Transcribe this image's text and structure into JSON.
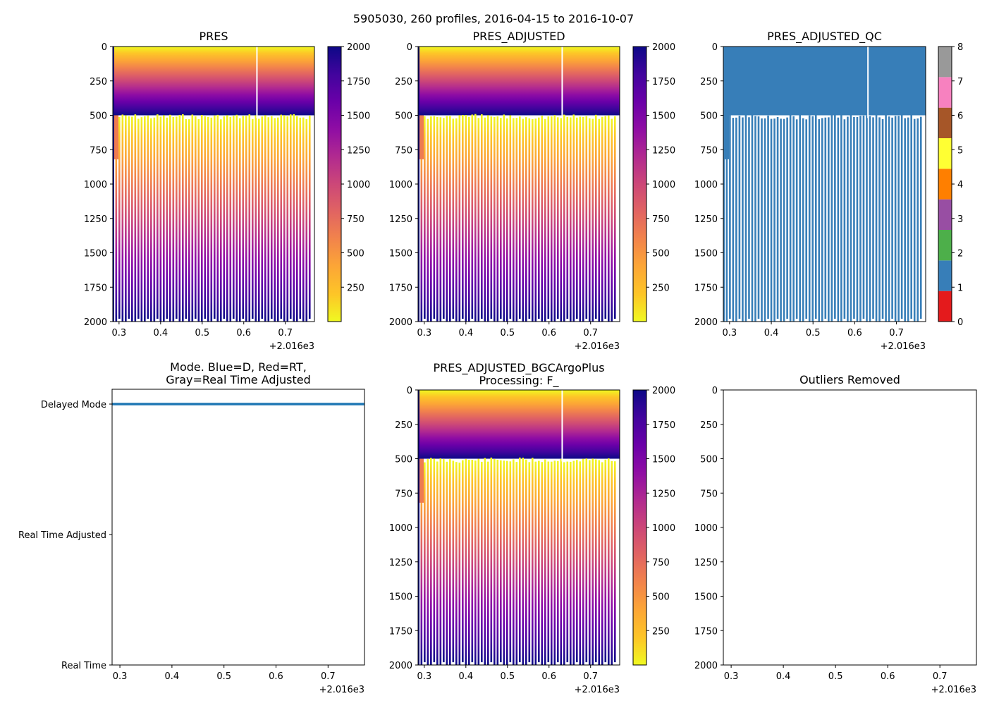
{
  "suptitle": "5905030, 260 profiles, 2016-04-15 to 2016-10-07",
  "chart_data": [
    {
      "id": "pres",
      "type": "heatmap",
      "title": "PRES",
      "xlim": [
        0.285,
        0.77
      ],
      "xticks": [
        0.3,
        0.4,
        0.5,
        0.6,
        0.7
      ],
      "x_offset_label": "+2.016e3",
      "ylim": [
        2000,
        0
      ],
      "yticks": [
        0,
        250,
        500,
        750,
        1000,
        1250,
        1500,
        1750,
        2000
      ],
      "colormap": "plasma_r",
      "clim": [
        0,
        2000
      ],
      "colorbar_ticks": [
        250,
        500,
        750,
        1000,
        1250,
        1500,
        1750,
        2000
      ],
      "gap_x": 0.63,
      "profile_count": 260,
      "value_range": [
        0,
        2000
      ],
      "surface_layer_depth": 500
    },
    {
      "id": "pres_adjusted",
      "type": "heatmap",
      "title": "PRES_ADJUSTED",
      "xlim": [
        0.285,
        0.77
      ],
      "xticks": [
        0.3,
        0.4,
        0.5,
        0.6,
        0.7
      ],
      "x_offset_label": "+2.016e3",
      "ylim": [
        2000,
        0
      ],
      "yticks": [
        0,
        250,
        500,
        750,
        1000,
        1250,
        1500,
        1750,
        2000
      ],
      "colormap": "plasma_r",
      "clim": [
        0,
        2000
      ],
      "colorbar_ticks": [
        250,
        500,
        750,
        1000,
        1250,
        1500,
        1750,
        2000
      ],
      "gap_x": 0.63,
      "profile_count": 260,
      "value_range": [
        0,
        2000
      ],
      "surface_layer_depth": 500
    },
    {
      "id": "pres_adjusted_qc",
      "type": "heatmap",
      "title": "PRES_ADJUSTED_QC",
      "xlim": [
        0.285,
        0.77
      ],
      "xticks": [
        0.3,
        0.4,
        0.5,
        0.6,
        0.7
      ],
      "x_offset_label": "+2.016e3",
      "ylim": [
        2000,
        0
      ],
      "yticks": [
        0,
        250,
        500,
        750,
        1000,
        1250,
        1500,
        1750,
        2000
      ],
      "qc_value": 1,
      "gap_x": 0.63,
      "colorbar_categories": [
        {
          "value": 0,
          "color": "#e41a1c"
        },
        {
          "value": 1,
          "color": "#377eb8"
        },
        {
          "value": 2,
          "color": "#4daf4a"
        },
        {
          "value": 3,
          "color": "#984ea3"
        },
        {
          "value": 4,
          "color": "#ff7f00"
        },
        {
          "value": 5,
          "color": "#ffff33"
        },
        {
          "value": 6,
          "color": "#a65628"
        },
        {
          "value": 7,
          "color": "#f781bf"
        },
        {
          "value": 8,
          "color": "#999999"
        }
      ],
      "colorbar_ticks": [
        0,
        1,
        2,
        3,
        4,
        5,
        6,
        7,
        8
      ]
    },
    {
      "id": "mode",
      "type": "scatter",
      "title": "Mode. Blue=D, Red=RT,",
      "title_line2": "Gray=Real Time Adjusted",
      "xlim": [
        0.285,
        0.77
      ],
      "xticks": [
        0.3,
        0.4,
        0.5,
        0.6,
        0.7
      ],
      "x_offset_label": "+2.016e3",
      "y_categories": [
        "Delayed Mode",
        "Real Time Adjusted",
        "Real Time"
      ],
      "series": [
        {
          "name": "D",
          "color": "#1f77b4",
          "category": "Delayed Mode",
          "x_range": [
            0.285,
            0.77
          ],
          "count": 260
        }
      ]
    },
    {
      "id": "pres_adjusted_bgc",
      "type": "heatmap",
      "title": "PRES_ADJUSTED_BGCArgoPlus",
      "title_line2": "Processing: F_",
      "xlim": [
        0.285,
        0.77
      ],
      "xticks": [
        0.3,
        0.4,
        0.5,
        0.6,
        0.7
      ],
      "x_offset_label": "+2.016e3",
      "ylim": [
        2000,
        0
      ],
      "yticks": [
        0,
        250,
        500,
        750,
        1000,
        1250,
        1500,
        1750,
        2000
      ],
      "colormap": "plasma_r",
      "clim": [
        0,
        2000
      ],
      "colorbar_ticks": [
        250,
        500,
        750,
        1000,
        1250,
        1500,
        1750,
        2000
      ],
      "gap_x": 0.63,
      "profile_count": 260,
      "value_range": [
        0,
        2000
      ],
      "surface_layer_depth": 500
    },
    {
      "id": "outliers",
      "type": "scatter",
      "title": "Outliers Removed",
      "xlim": [
        0.285,
        0.77
      ],
      "xticks": [
        0.3,
        0.4,
        0.5,
        0.6,
        0.7
      ],
      "x_offset_label": "+2.016e3",
      "ylim": [
        2000,
        0
      ],
      "yticks": [
        0,
        250,
        500,
        750,
        1000,
        1250,
        1500,
        1750,
        2000
      ],
      "series": []
    }
  ]
}
